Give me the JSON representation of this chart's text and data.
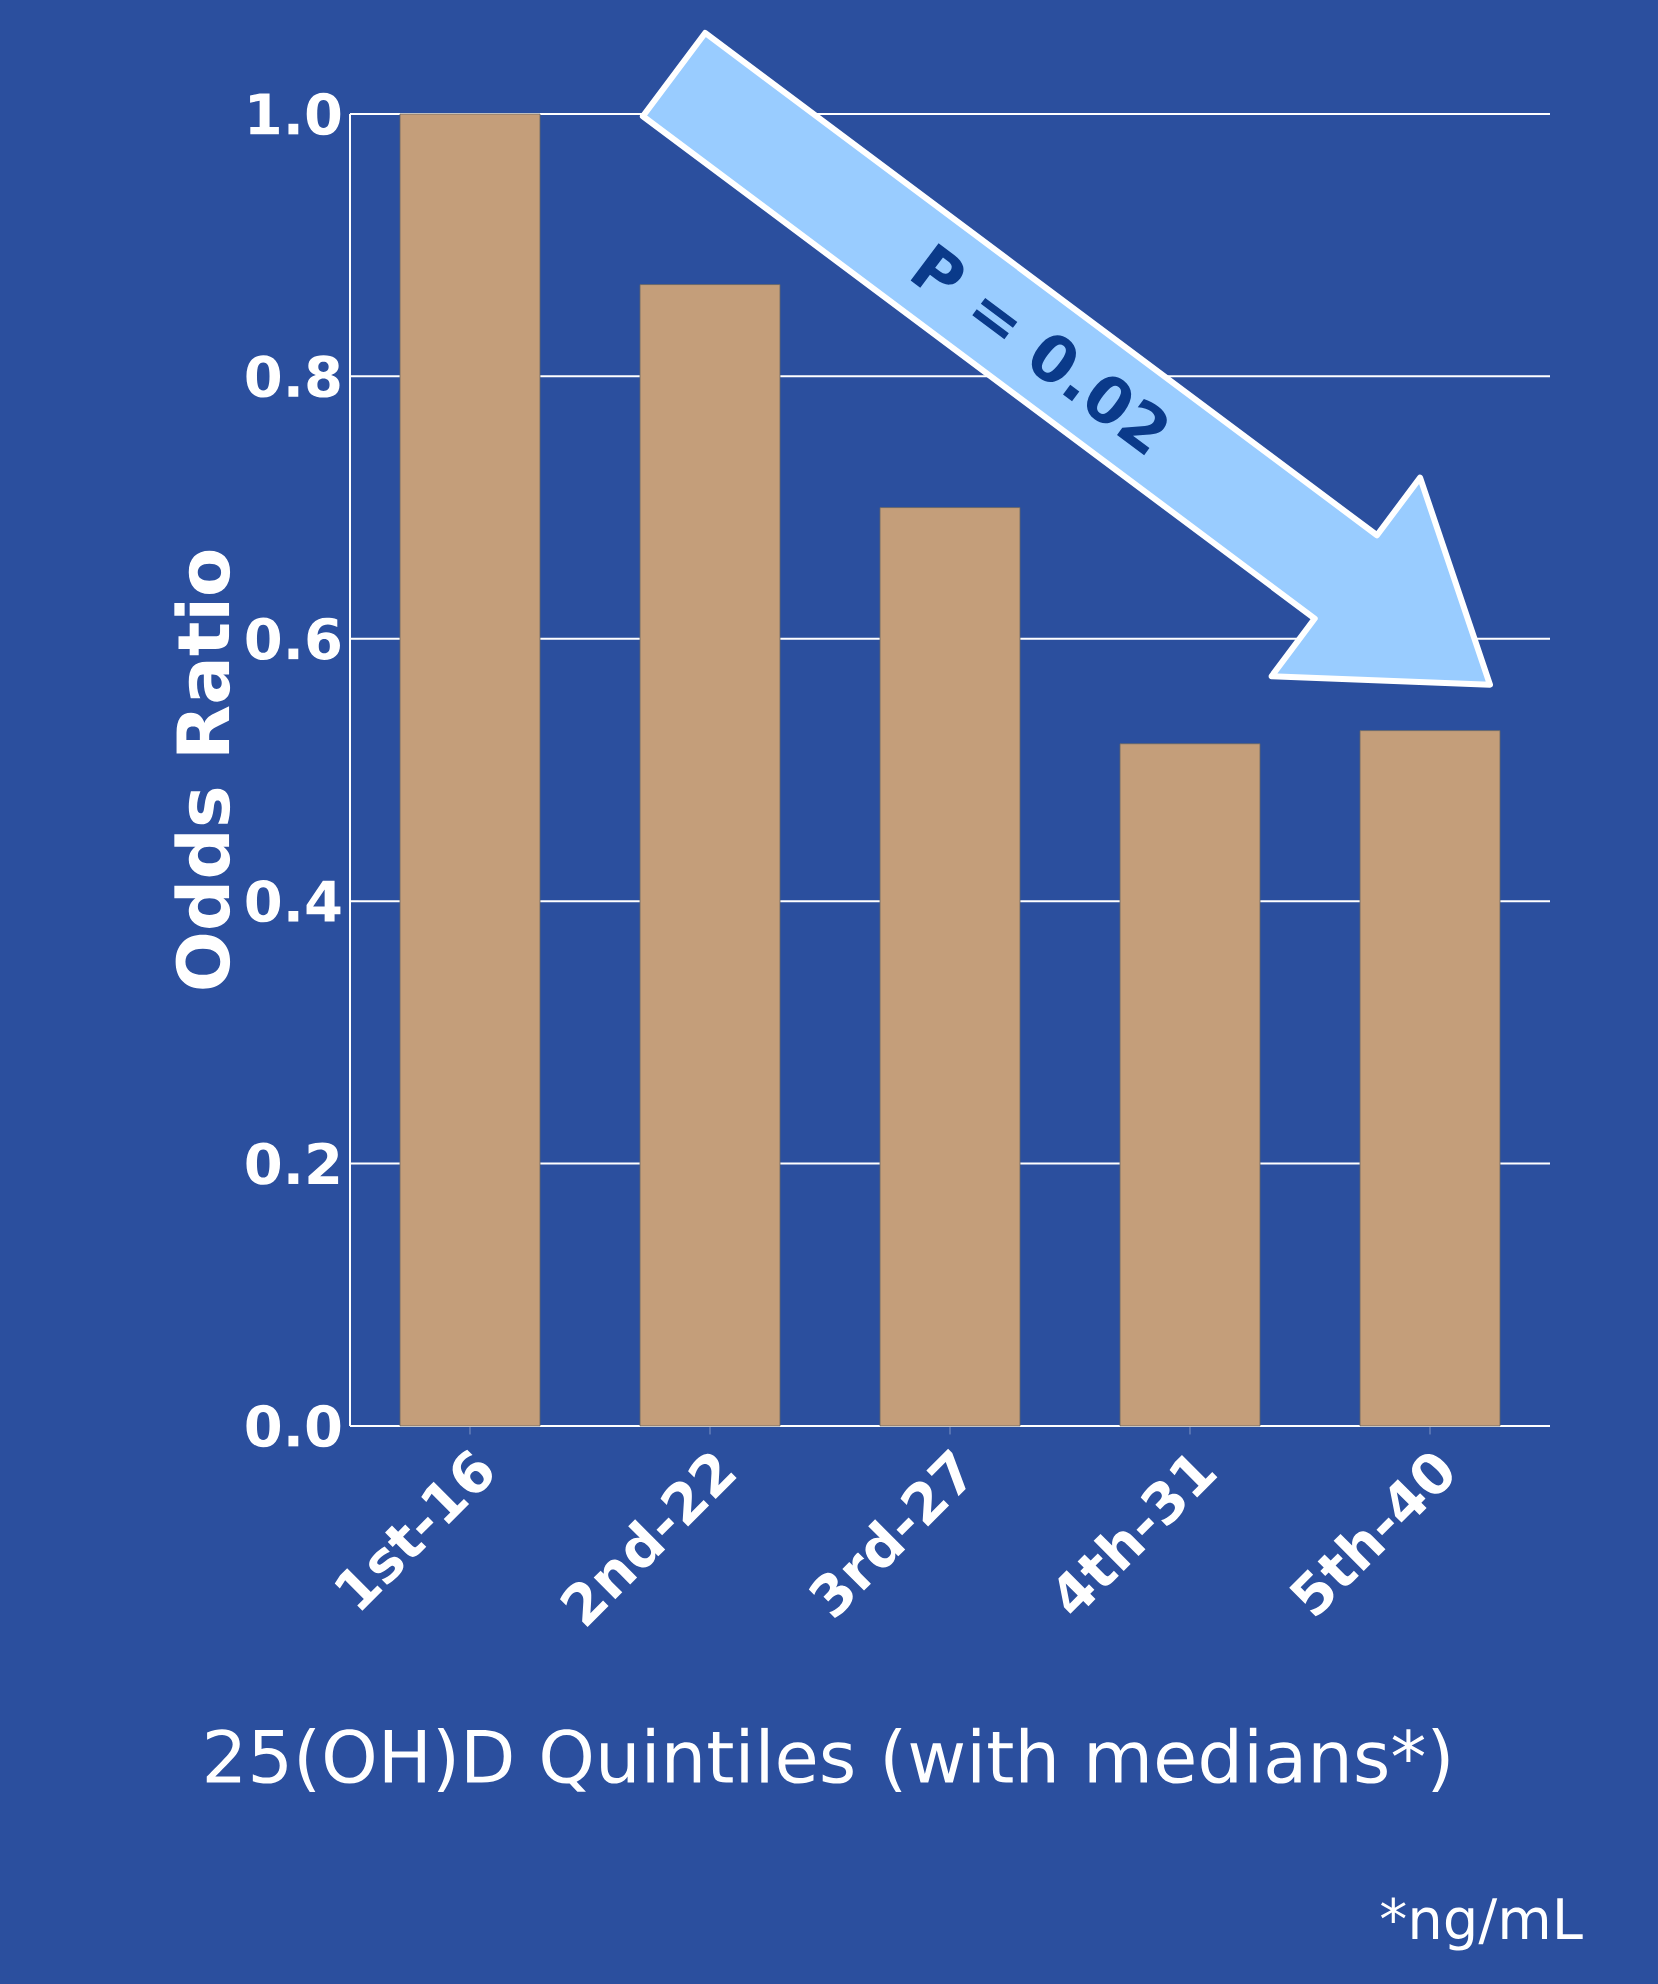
{
  "chart_data": {
    "type": "bar",
    "ylabel": "Odds Ratio",
    "xlabel": "25(OH)D Quintiles (with medians*)",
    "categories": [
      "1st-16",
      "2nd-22",
      "3rd-27",
      "4th-31",
      "5th-40"
    ],
    "values": [
      1.0,
      0.87,
      0.7,
      0.52,
      0.53
    ],
    "color": "#c49e7a",
    "ylim": [
      0,
      1.0
    ],
    "yticks": [
      {
        "value": 0,
        "label": "0.0"
      },
      0.2,
      0.4,
      0.6,
      0.8,
      {
        "value": 1.0,
        "label": "1.0"
      }
    ],
    "grid": "y",
    "annotations": [
      "P = 0.02",
      "*ng/mL"
    ]
  }
}
